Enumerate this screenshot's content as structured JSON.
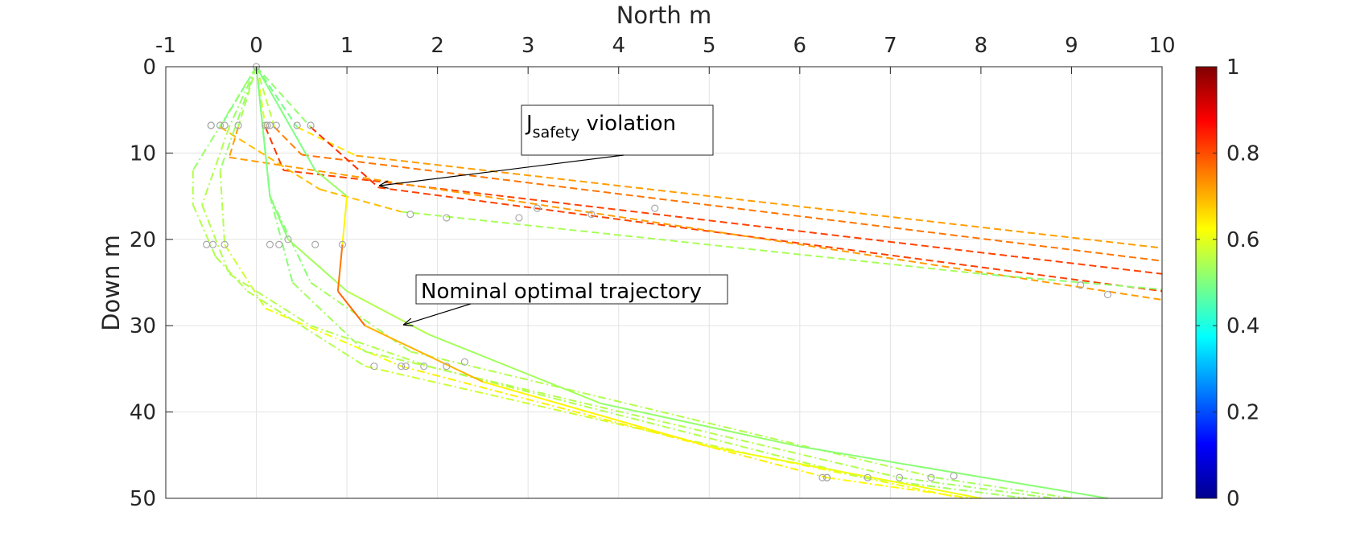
{
  "chart_data": {
    "type": "line",
    "xlabel": "North m",
    "ylabel": "Down m",
    "xlim": [
      -1,
      10
    ],
    "ylim": [
      0,
      50
    ],
    "y_reversed": true,
    "x_axis_location": "top",
    "grid": true,
    "x_ticks": [
      "-1",
      "0",
      "1",
      "2",
      "3",
      "4",
      "5",
      "6",
      "7",
      "8",
      "9",
      "10"
    ],
    "y_ticks": [
      "0",
      "10",
      "20",
      "30",
      "40",
      "50"
    ],
    "colorbar": {
      "colormap": "jet",
      "location": "right",
      "limits": [
        0,
        1
      ],
      "ticks": [
        "0",
        "0.2",
        "0.4",
        "0.6",
        "0.8",
        "1"
      ]
    },
    "annotations": [
      {
        "text_main": "J",
        "text_sub": "safety",
        "text_rest": " violation",
        "arrow_to": [
          1.35,
          14
        ]
      },
      {
        "text_main": "Nominal optimal trajectory",
        "arrow_to": [
          1.65,
          30
        ]
      }
    ],
    "series": [
      {
        "style": "dashed",
        "points": [
          [
            0,
            0
          ],
          [
            0.45,
            7
          ],
          [
            1.1,
            10.3
          ],
          [
            10,
            21
          ]
        ],
        "values": [
          0.38,
          0.6,
          0.7,
          0.74
        ],
        "markers": [
          [
            0.45,
            6.8
          ],
          [
            4.4,
            16.4
          ]
        ]
      },
      {
        "style": "dashed",
        "points": [
          [
            0,
            0
          ],
          [
            0.2,
            7
          ],
          [
            0.5,
            10.2
          ],
          [
            10,
            22.5
          ]
        ],
        "values": [
          0.38,
          0.74,
          0.76,
          0.76
        ],
        "markers": [
          [
            0.22,
            6.8
          ],
          [
            3.7,
            17.1
          ]
        ]
      },
      {
        "style": "dashed",
        "points": [
          [
            0,
            0
          ],
          [
            0.1,
            7
          ],
          [
            0.3,
            12
          ],
          [
            10,
            24
          ]
        ],
        "values": [
          0.38,
          0.8,
          0.84,
          0.78
        ],
        "markers": [
          [
            0.12,
            6.8
          ],
          [
            3.1,
            16.4
          ]
        ]
      },
      {
        "style": "dashed",
        "points": [
          [
            0,
            0
          ],
          [
            0.6,
            7
          ],
          [
            1.35,
            14
          ],
          [
            10,
            26
          ]
        ],
        "values": [
          0.38,
          0.66,
          1.0,
          0.62
        ],
        "markers": [
          [
            0.6,
            6.8
          ],
          [
            9.1,
            25.3
          ]
        ]
      },
      {
        "style": "dashed",
        "points": [
          [
            0,
            0
          ],
          [
            -0.2,
            7
          ],
          [
            -0.3,
            10.5
          ],
          [
            10,
            27
          ]
        ],
        "values": [
          0.38,
          0.7,
          0.74,
          0.7
        ],
        "markers": [
          [
            -0.2,
            6.8
          ],
          [
            9.4,
            26.4
          ]
        ]
      },
      {
        "style": "dashed",
        "points": [
          [
            0,
            0
          ],
          [
            -0.4,
            7
          ],
          [
            0.7,
            14.2
          ],
          [
            1.6,
            16.8
          ],
          [
            8,
            24
          ],
          [
            10,
            25.8
          ]
        ],
        "values": [
          0.38,
          0.6,
          0.78,
          0.6,
          0.48,
          0.55
        ],
        "markers": [
          [
            -0.4,
            6.8
          ],
          [
            1.7,
            17.1
          ],
          [
            2.1,
            17.5
          ],
          [
            2.9,
            17.5
          ]
        ]
      },
      {
        "style": "dashdot",
        "points": [
          [
            0,
            0
          ],
          [
            -0.7,
            12
          ],
          [
            -0.7,
            16
          ],
          [
            -0.45,
            22
          ],
          [
            -0.1,
            26
          ],
          [
            1.2,
            34.7
          ],
          [
            5.5,
            45
          ],
          [
            7.8,
            50
          ]
        ],
        "values": [
          0.5,
          0.55,
          0.55,
          0.55,
          0.55,
          0.55,
          0.6,
          0.62
        ],
        "markers": [
          [
            -0.5,
            6.8
          ],
          [
            -0.55,
            20.6
          ],
          [
            1.3,
            34.7
          ],
          [
            6.25,
            47.6
          ]
        ]
      },
      {
        "style": "dashdot",
        "points": [
          [
            0,
            0
          ],
          [
            -0.4,
            12
          ],
          [
            -0.35,
            20.6
          ],
          [
            0.1,
            28
          ],
          [
            1.6,
            34.7
          ],
          [
            6.3,
            47.6
          ],
          [
            7.9,
            50
          ]
        ],
        "values": [
          0.5,
          0.55,
          0.55,
          0.6,
          0.62,
          0.66,
          0.6
        ],
        "markers": [
          [
            -0.35,
            6.8
          ],
          [
            -0.35,
            20.6
          ],
          [
            1.6,
            34.7
          ],
          [
            6.3,
            47.6
          ]
        ]
      },
      {
        "style": "dashdot",
        "points": [
          [
            0,
            0
          ],
          [
            -0.3,
            7
          ],
          [
            -0.6,
            16
          ],
          [
            -0.3,
            24
          ],
          [
            0.6,
            30
          ],
          [
            1.9,
            34.7
          ],
          [
            6.7,
            47.6
          ],
          [
            8.5,
            50
          ]
        ],
        "values": [
          0.5,
          0.55,
          0.55,
          0.55,
          0.55,
          0.55,
          0.55,
          0.52
        ],
        "markers": [
          [
            -0.5,
            6.8
          ],
          [
            -0.48,
            20.6
          ],
          [
            1.85,
            34.7
          ],
          [
            6.75,
            47.6
          ]
        ]
      },
      {
        "style": "dashdot",
        "points": [
          [
            0,
            0
          ],
          [
            0.15,
            15
          ],
          [
            0.4,
            25
          ],
          [
            1.2,
            33
          ],
          [
            7.1,
            47.6
          ],
          [
            8.8,
            50
          ]
        ],
        "values": [
          0.5,
          0.5,
          0.52,
          0.55,
          0.55,
          0.52
        ],
        "markers": [
          [
            0.15,
            6.8
          ],
          [
            0.25,
            20.6
          ],
          [
            2.1,
            34.7
          ],
          [
            7.1,
            47.6
          ]
        ]
      },
      {
        "style": "dashdot",
        "points": [
          [
            0,
            0
          ],
          [
            0.15,
            15
          ],
          [
            0.6,
            25
          ],
          [
            1.7,
            33
          ],
          [
            7.5,
            47.6
          ],
          [
            9,
            50
          ]
        ],
        "values": [
          0.5,
          0.5,
          0.52,
          0.55,
          0.55,
          0.52
        ],
        "markers": [
          [
            0.1,
            6.8
          ],
          [
            0.15,
            20.6
          ],
          [
            1.65,
            34.7
          ],
          [
            7.45,
            47.6
          ]
        ]
      },
      {
        "style": "solid",
        "points": [
          [
            0,
            0
          ],
          [
            0.15,
            15
          ],
          [
            0.35,
            20
          ],
          [
            1.0,
            26
          ],
          [
            1.9,
            31
          ],
          [
            3.8,
            39
          ],
          [
            6,
            44
          ],
          [
            9.4,
            50
          ]
        ],
        "values": [
          0.5,
          0.5,
          0.52,
          0.55,
          0.55,
          0.52,
          0.52,
          0.5
        ],
        "markers": [
          [
            0.35,
            20
          ],
          [
            2.3,
            34.2
          ],
          [
            7.7,
            47.4
          ]
        ]
      },
      {
        "style": "solid",
        "points": [
          [
            0,
            0
          ],
          [
            0.65,
            12
          ],
          [
            1.0,
            15
          ],
          [
            0.95,
            20.6
          ],
          [
            0.9,
            26
          ],
          [
            1.2,
            30
          ],
          [
            2.5,
            36.5
          ],
          [
            5,
            44
          ],
          [
            8,
            50
          ]
        ],
        "values": [
          0.5,
          0.5,
          0.55,
          0.72,
          0.8,
          0.75,
          0.65,
          0.62,
          0.6
        ],
        "markers": [
          [
            0.65,
            20.6
          ],
          [
            0.95,
            20.6
          ],
          [
            6.3,
            47.6
          ]
        ]
      }
    ]
  }
}
